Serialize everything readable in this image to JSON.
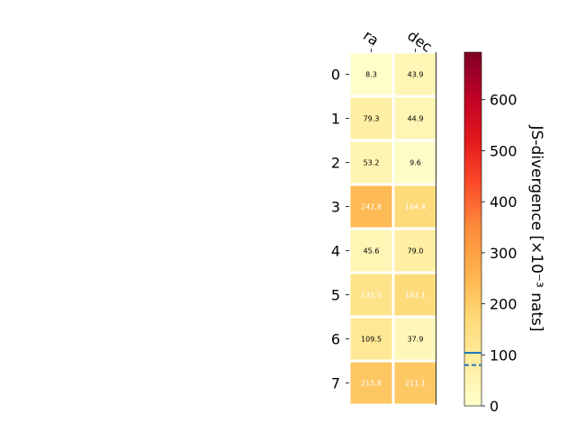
{
  "chart_data": {
    "type": "heatmap",
    "columns": [
      "ra",
      "dec"
    ],
    "rows": [
      "0",
      "1",
      "2",
      "3",
      "4",
      "5",
      "6",
      "7"
    ],
    "values": [
      [
        8.3,
        43.9
      ],
      [
        79.3,
        44.9
      ],
      [
        53.2,
        9.6
      ],
      [
        242.8,
        164.4
      ],
      [
        45.6,
        79.0
      ],
      [
        131.5,
        162.1
      ],
      [
        109.5,
        37.9
      ],
      [
        215.8,
        211.1
      ]
    ],
    "value_labels": [
      [
        "8.3",
        "43.9"
      ],
      [
        "79.3",
        "44.9"
      ],
      [
        "53.2",
        "9.6"
      ],
      [
        "242.8",
        "164.4"
      ],
      [
        "45.6",
        "79.0"
      ],
      [
        "131.5",
        "162.1"
      ],
      [
        "109.5",
        "37.9"
      ],
      [
        "215.8",
        "211.1"
      ]
    ],
    "colorbar": {
      "label": "JS-divergence [×10⁻³ nats]",
      "range": [
        0,
        693
      ],
      "ticks": [
        0,
        100,
        200,
        300,
        400,
        500,
        600
      ],
      "tick_labels": [
        "0",
        "100",
        "200",
        "300",
        "400",
        "500",
        "600"
      ],
      "colormap": "YlOrRd",
      "reference_lines": [
        {
          "value": 104,
          "style": "solid",
          "color": "#1f77b4"
        },
        {
          "value": 80,
          "style": "dashed",
          "color": "#1f77b4"
        }
      ]
    },
    "grid": false
  }
}
